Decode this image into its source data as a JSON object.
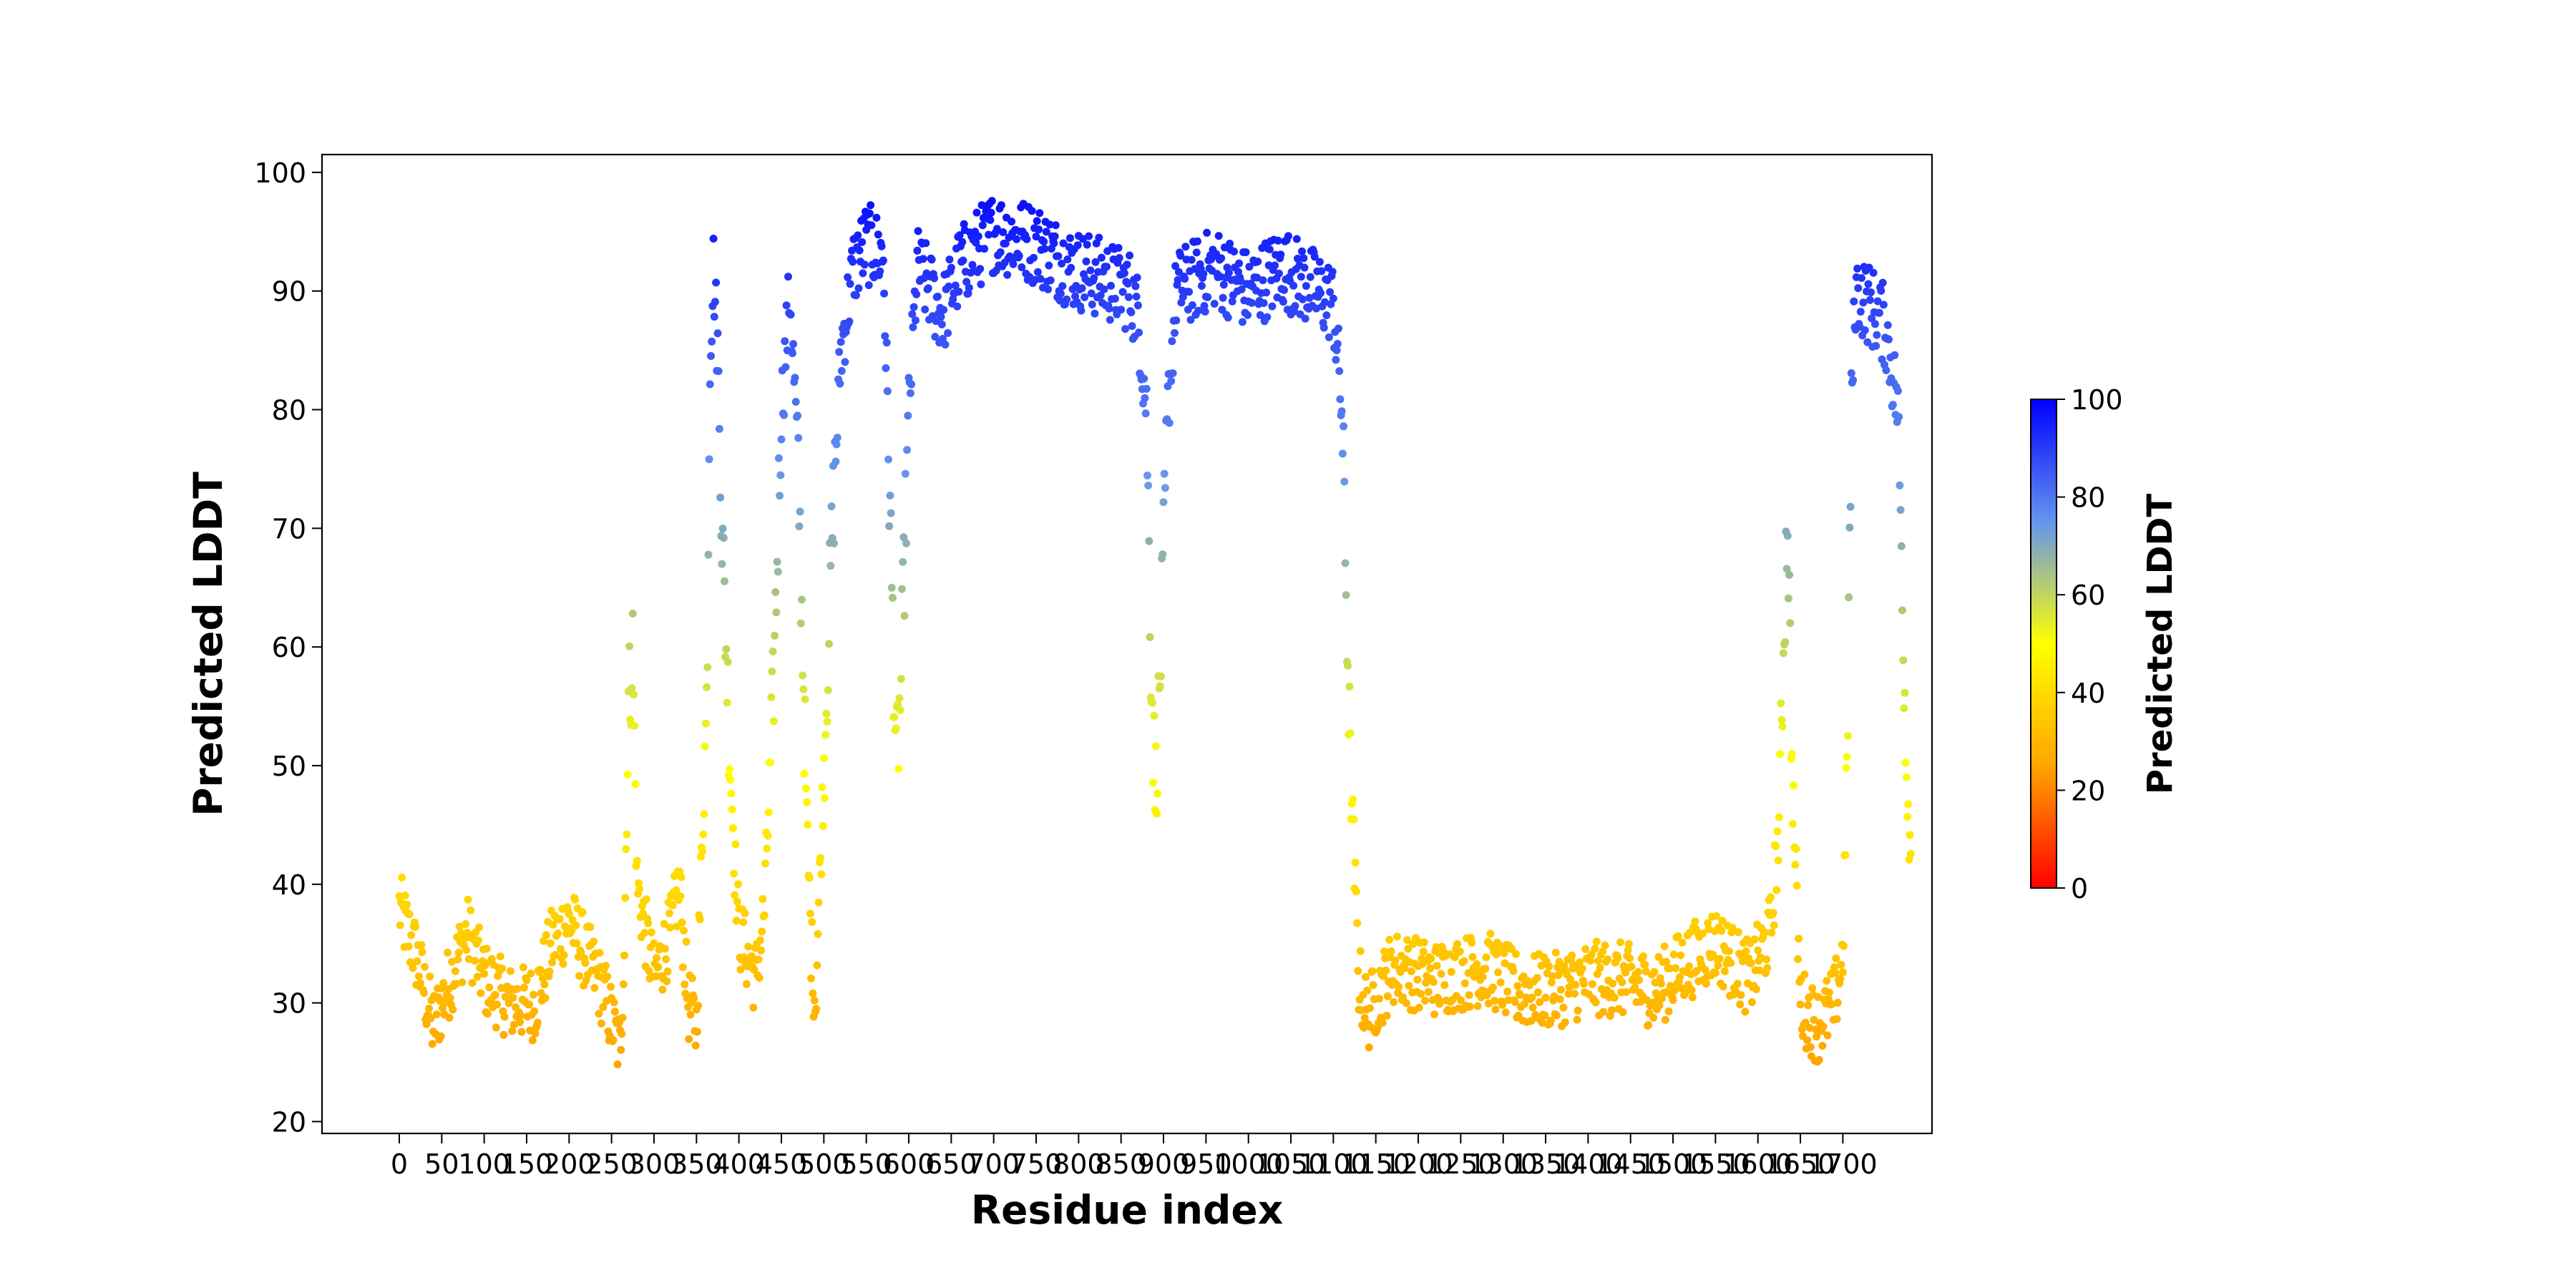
{
  "chart_data": {
    "type": "scatter",
    "xlabel": "Residue index",
    "ylabel": "Predicted LDDT",
    "xlim": [
      -91,
      1805
    ],
    "ylim": [
      19,
      101.5
    ],
    "xticks": [
      0,
      50,
      100,
      150,
      200,
      250,
      300,
      350,
      400,
      450,
      500,
      550,
      600,
      650,
      700,
      750,
      800,
      850,
      900,
      950,
      1000,
      1050,
      1100,
      1150,
      1200,
      1250,
      1300,
      1350,
      1400,
      1450,
      1500,
      1550,
      1600,
      1650,
      1700
    ],
    "yticks": [
      20,
      30,
      40,
      50,
      60,
      70,
      80,
      90,
      100
    ],
    "grid": false,
    "colorbar": {
      "label": "Predicted LDDT",
      "range": [
        0,
        100
      ],
      "ticks": [
        0,
        20,
        40,
        60,
        80,
        100
      ],
      "colors": [
        "#ff0000",
        "#ffa500",
        "#ffff00",
        "#6495ed",
        "#0000ff"
      ],
      "stops": [
        0,
        0.25,
        0.5,
        0.75,
        1.0
      ]
    },
    "profile": [
      [
        0,
        38
      ],
      [
        20,
        34
      ],
      [
        40,
        28
      ],
      [
        60,
        32
      ],
      [
        80,
        36
      ],
      [
        100,
        32
      ],
      [
        130,
        30
      ],
      [
        160,
        30
      ],
      [
        180,
        35
      ],
      [
        200,
        37
      ],
      [
        220,
        34
      ],
      [
        240,
        31
      ],
      [
        260,
        26
      ],
      [
        265,
        35
      ],
      [
        270,
        55
      ],
      [
        275,
        60
      ],
      [
        280,
        40
      ],
      [
        300,
        32
      ],
      [
        320,
        36
      ],
      [
        330,
        40
      ],
      [
        340,
        30
      ],
      [
        350,
        28
      ],
      [
        355,
        40
      ],
      [
        362,
        55
      ],
      [
        366,
        85
      ],
      [
        370,
        92
      ],
      [
        375,
        85
      ],
      [
        380,
        70
      ],
      [
        385,
        60
      ],
      [
        390,
        50
      ],
      [
        395,
        42
      ],
      [
        400,
        36
      ],
      [
        420,
        32
      ],
      [
        430,
        38
      ],
      [
        440,
        55
      ],
      [
        450,
        80
      ],
      [
        460,
        90
      ],
      [
        470,
        75
      ],
      [
        475,
        60
      ],
      [
        480,
        45
      ],
      [
        485,
        35
      ],
      [
        490,
        30
      ],
      [
        500,
        50
      ],
      [
        510,
        70
      ],
      [
        520,
        85
      ],
      [
        535,
        92
      ],
      [
        550,
        94
      ],
      [
        570,
        93
      ],
      [
        575,
        80
      ],
      [
        580,
        65
      ],
      [
        585,
        50
      ],
      [
        590,
        55
      ],
      [
        600,
        80
      ],
      [
        610,
        92
      ],
      [
        625,
        90
      ],
      [
        640,
        88
      ],
      [
        660,
        92
      ],
      [
        700,
        95
      ],
      [
        750,
        94
      ],
      [
        790,
        92
      ],
      [
        830,
        91
      ],
      [
        860,
        90
      ],
      [
        870,
        88
      ],
      [
        880,
        80
      ],
      [
        885,
        60
      ],
      [
        890,
        48
      ],
      [
        895,
        55
      ],
      [
        905,
        80
      ],
      [
        915,
        90
      ],
      [
        960,
        92
      ],
      [
        1000,
        90
      ],
      [
        1040,
        92
      ],
      [
        1080,
        90
      ],
      [
        1100,
        89
      ],
      [
        1110,
        80
      ],
      [
        1115,
        65
      ],
      [
        1120,
        50
      ],
      [
        1130,
        32
      ],
      [
        1140,
        29
      ],
      [
        1170,
        33
      ],
      [
        1220,
        32
      ],
      [
        1280,
        33
      ],
      [
        1320,
        31
      ],
      [
        1360,
        31
      ],
      [
        1400,
        32
      ],
      [
        1440,
        32
      ],
      [
        1480,
        31
      ],
      [
        1510,
        33
      ],
      [
        1550,
        35
      ],
      [
        1590,
        32
      ],
      [
        1615,
        36
      ],
      [
        1625,
        45
      ],
      [
        1630,
        60
      ],
      [
        1635,
        72
      ],
      [
        1640,
        50
      ],
      [
        1650,
        30
      ],
      [
        1670,
        28
      ],
      [
        1690,
        30
      ],
      [
        1700,
        34
      ],
      [
        1705,
        50
      ],
      [
        1710,
        80
      ],
      [
        1715,
        90
      ],
      [
        1730,
        89
      ],
      [
        1750,
        87
      ],
      [
        1765,
        80
      ],
      [
        1770,
        65
      ],
      [
        1775,
        50
      ],
      [
        1780,
        42
      ]
    ]
  }
}
